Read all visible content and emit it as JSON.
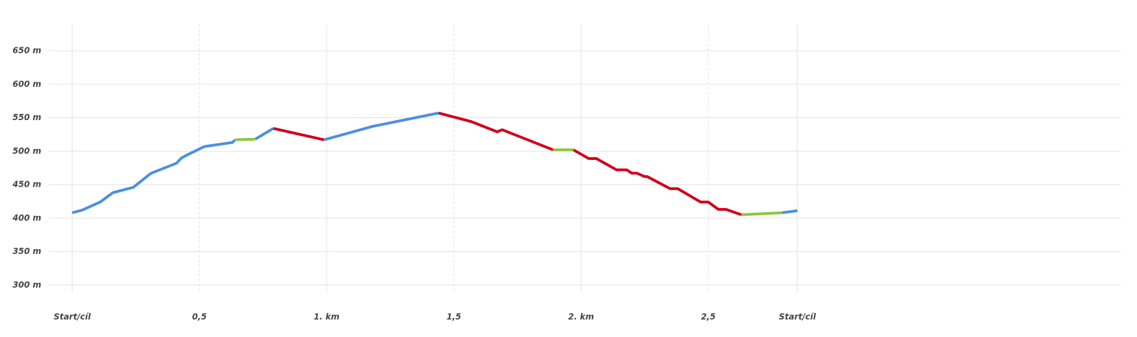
{
  "chart_data": {
    "type": "line",
    "xlim": [
      -0.1,
      4.12
    ],
    "ylim": [
      290,
      690
    ],
    "xticks": [
      {
        "value": 0,
        "label": "Start/cíl"
      },
      {
        "value": 0.5,
        "label": "0,5"
      },
      {
        "value": 1,
        "label": "1. km"
      },
      {
        "value": 1.5,
        "label": "1,5"
      },
      {
        "value": 2,
        "label": "2. km"
      },
      {
        "value": 2.5,
        "label": "2,5"
      },
      {
        "value": 2.85,
        "label": "Start/cíl"
      }
    ],
    "yticks": [
      {
        "value": 300,
        "label": "300 m"
      },
      {
        "value": 350,
        "label": "350 m"
      },
      {
        "value": 400,
        "label": "400 m"
      },
      {
        "value": 450,
        "label": "450 m"
      },
      {
        "value": 500,
        "label": "500 m"
      },
      {
        "value": 550,
        "label": "550 m"
      },
      {
        "value": 600,
        "label": "600 m"
      },
      {
        "value": 650,
        "label": "650 m"
      }
    ],
    "grid": true,
    "series": [
      {
        "color": "#4a90e2",
        "x": [
          0,
          0.04,
          0.11,
          0.16,
          0.24,
          0.31,
          0.41,
          0.43,
          0.45,
          0.52,
          0.63,
          0.64
        ],
        "values": [
          408,
          412,
          424,
          438,
          446,
          467,
          482,
          490,
          494,
          507,
          513,
          517
        ]
      },
      {
        "color": "#8dc63f",
        "x": [
          0.64,
          0.72
        ],
        "values": [
          517,
          518
        ]
      },
      {
        "color": "#4a90e2",
        "x": [
          0.72,
          0.79
        ],
        "values": [
          518,
          534
        ]
      },
      {
        "color": "#d0021b",
        "x": [
          0.79,
          0.99
        ],
        "values": [
          534,
          517
        ]
      },
      {
        "color": "#4a90e2",
        "x": [
          0.99,
          1.18,
          1.44
        ],
        "values": [
          517,
          537,
          557
        ]
      },
      {
        "color": "#d0021b",
        "x": [
          1.44,
          1.57,
          1.67,
          1.69,
          1.89
        ],
        "values": [
          557,
          544,
          529,
          532,
          502
        ]
      },
      {
        "color": "#8dc63f",
        "x": [
          1.89,
          1.97
        ],
        "values": [
          502,
          502
        ]
      },
      {
        "color": "#d0021b",
        "x": [
          1.97,
          2.03,
          2.06,
          2.14,
          2.18,
          2.2,
          2.22,
          2.25,
          2.26,
          2.35,
          2.38,
          2.47,
          2.5,
          2.54,
          2.57,
          2.63
        ],
        "values": [
          502,
          489,
          489,
          472,
          472,
          467,
          467,
          462,
          462,
          444,
          444,
          424,
          424,
          413,
          413,
          405
        ]
      },
      {
        "color": "#8dc63f",
        "x": [
          2.63,
          2.79
        ],
        "values": [
          405,
          408
        ]
      },
      {
        "color": "#4a90e2",
        "x": [
          2.79,
          2.85
        ],
        "values": [
          408,
          411
        ]
      }
    ]
  }
}
